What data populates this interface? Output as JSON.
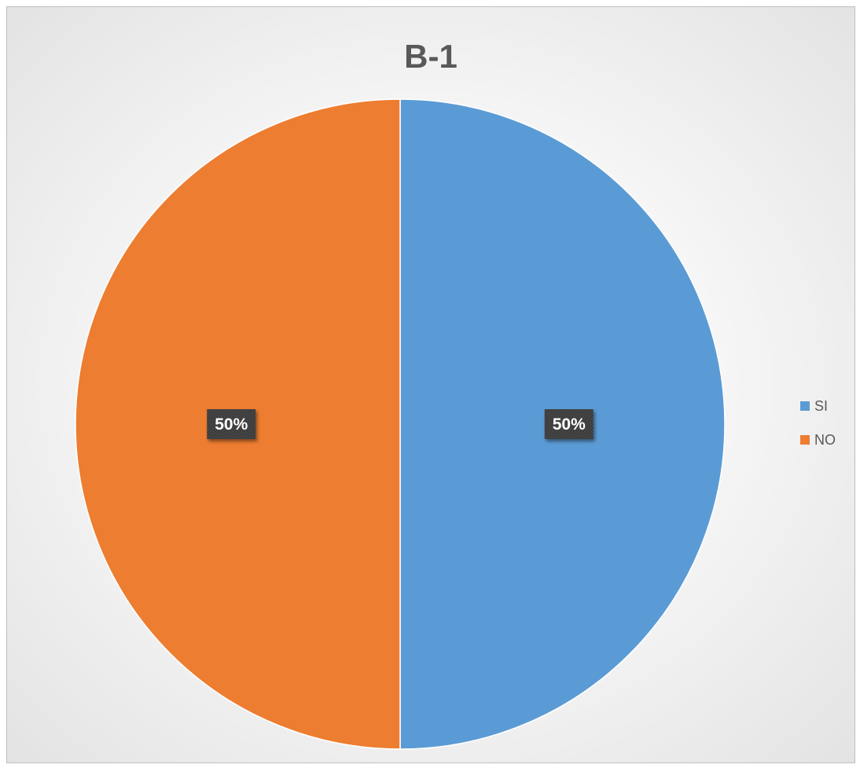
{
  "chart_data": {
    "type": "pie",
    "title": "B-1",
    "categories": [
      "SI",
      "NO"
    ],
    "values": [
      50,
      50
    ],
    "data_labels": [
      "50%",
      "50%"
    ],
    "colors": [
      "#5b9bd5",
      "#ed7d31"
    ],
    "legend_position": "right",
    "start_angle": "12 o'clock",
    "direction": "clockwise"
  }
}
